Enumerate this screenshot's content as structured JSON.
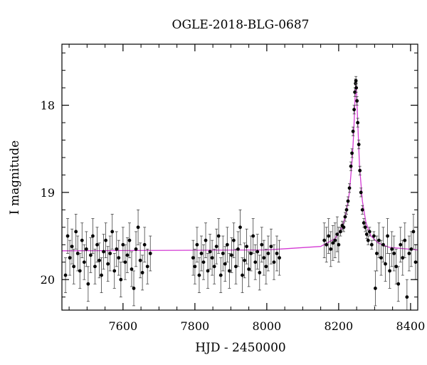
{
  "chart_data": {
    "type": "scatter",
    "title": "OGLE-2018-BLG-0687",
    "xlabel": "HJD - 2450000",
    "ylabel": "I magnitude",
    "xlim": [
      7430,
      8420
    ],
    "ylim": [
      20.35,
      17.3
    ],
    "y_inverted": true,
    "x_ticks": [
      7600,
      7800,
      8000,
      8200,
      8400
    ],
    "y_ticks": [
      18,
      19,
      20
    ],
    "grid": false,
    "point_color": "#000000",
    "model_color": "#d43ad4",
    "baseline_mag": 19.67,
    "peak": {
      "x": 8248,
      "y": 17.72
    },
    "model": {
      "name": "",
      "x": [
        7430,
        8000,
        8150,
        8190,
        8210,
        8220,
        8230,
        8238,
        8242,
        8246,
        8248,
        8250,
        8254,
        8258,
        8266,
        8276,
        8290,
        8310,
        8340,
        8420
      ],
      "y": [
        19.67,
        19.66,
        19.62,
        19.53,
        19.4,
        19.25,
        19.0,
        18.6,
        18.3,
        17.88,
        17.72,
        17.88,
        18.3,
        18.7,
        19.1,
        19.35,
        19.5,
        19.58,
        19.63,
        19.66
      ]
    },
    "series": [
      {
        "name": "",
        "x": [
          7440,
          7446,
          7452,
          7458,
          7463,
          7469,
          7474,
          7480,
          7486,
          7492,
          7498,
          7503,
          7510,
          7516,
          7522,
          7528,
          7534,
          7540,
          7546,
          7552,
          7558,
          7564,
          7570,
          7576,
          7582,
          7588,
          7594,
          7600,
          7606,
          7612,
          7618,
          7624,
          7630,
          7636,
          7642,
          7648,
          7654,
          7660,
          7668,
          7676,
          7795,
          7800,
          7806,
          7812,
          7818,
          7824,
          7830,
          7836,
          7842,
          7848,
          7854,
          7860,
          7866,
          7872,
          7878,
          7884,
          7890,
          7896,
          7902,
          7908,
          7914,
          7920,
          7926,
          7932,
          7938,
          7944,
          7950,
          7956,
          7962,
          7968,
          7974,
          7980,
          7986,
          7992,
          7998,
          8004,
          8012,
          8020,
          8028,
          8035,
          8160,
          8166,
          8172,
          8178,
          8184,
          8190,
          8196,
          8200,
          8205,
          8210,
          8214,
          8218,
          8222,
          8226,
          8230,
          8234,
          8237,
          8240,
          8243,
          8245,
          8247,
          8248,
          8249,
          8251,
          8253,
          8256,
          8259,
          8262,
          8266,
          8270,
          8274,
          8278,
          8282,
          8286,
          8292,
          8298,
          8302,
          8306,
          8312,
          8318,
          8324,
          8330,
          8336,
          8342,
          8348,
          8354,
          8360,
          8366,
          8372,
          8378,
          8384,
          8390,
          8396,
          8402,
          8408,
          8414
        ],
        "y": [
          19.95,
          19.5,
          19.75,
          19.62,
          19.85,
          19.45,
          19.7,
          19.9,
          19.55,
          19.8,
          19.65,
          20.05,
          19.72,
          19.5,
          19.85,
          19.6,
          19.78,
          19.95,
          19.68,
          19.55,
          19.82,
          19.7,
          19.45,
          19.9,
          19.65,
          19.75,
          20.0,
          19.6,
          19.8,
          19.72,
          19.55,
          19.88,
          20.1,
          19.65,
          19.4,
          19.78,
          19.92,
          19.6,
          19.85,
          19.7,
          19.75,
          19.85,
          19.6,
          19.95,
          19.7,
          19.8,
          19.55,
          19.9,
          19.68,
          19.75,
          19.85,
          19.62,
          19.5,
          19.95,
          19.7,
          19.82,
          19.6,
          19.9,
          19.72,
          19.55,
          19.85,
          19.65,
          19.4,
          19.95,
          19.78,
          19.62,
          19.88,
          19.7,
          19.5,
          19.8,
          19.68,
          19.92,
          19.6,
          19.75,
          19.85,
          19.7,
          19.62,
          19.8,
          19.7,
          19.75,
          19.55,
          19.6,
          19.5,
          19.65,
          19.58,
          19.55,
          19.48,
          19.6,
          19.45,
          19.38,
          19.4,
          19.28,
          19.2,
          19.1,
          18.95,
          18.7,
          18.55,
          18.3,
          18.05,
          17.85,
          17.75,
          17.72,
          17.8,
          17.95,
          18.2,
          18.45,
          18.75,
          19.0,
          19.2,
          19.35,
          19.4,
          19.48,
          19.55,
          19.45,
          19.6,
          19.5,
          20.1,
          19.7,
          19.55,
          19.75,
          19.6,
          19.82,
          19.5,
          19.9,
          19.65,
          19.7,
          19.85,
          20.05,
          19.6,
          19.75,
          19.55,
          20.2,
          19.7,
          19.65,
          19.45,
          19.8
        ]
      }
    ]
  }
}
